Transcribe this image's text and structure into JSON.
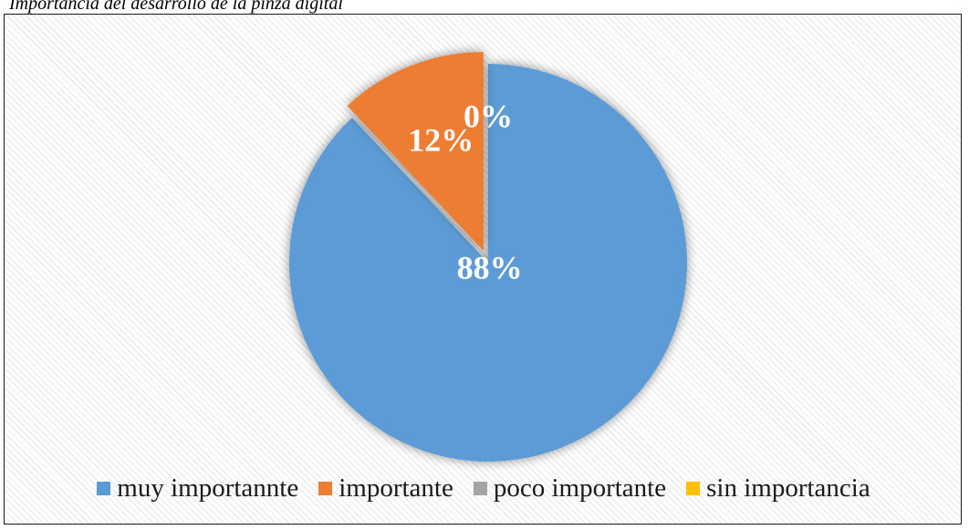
{
  "caption": "Importancia del desarrollo de la pinza digital",
  "chart_data": {
    "type": "pie",
    "title": "",
    "slices": [
      {
        "name": "muy importannte",
        "value": 88,
        "label": "88%",
        "color": "#5b9bd5"
      },
      {
        "name": "importante",
        "value": 12,
        "label": "12%",
        "color": "#ed7d31",
        "exploded": true
      },
      {
        "name": "poco importante",
        "value": 0,
        "label": "",
        "color": "#a5a5a5"
      },
      {
        "name": "sin importancia",
        "value": 0,
        "label": "0%",
        "color": "#ffc000"
      }
    ],
    "legend_position": "bottom"
  }
}
